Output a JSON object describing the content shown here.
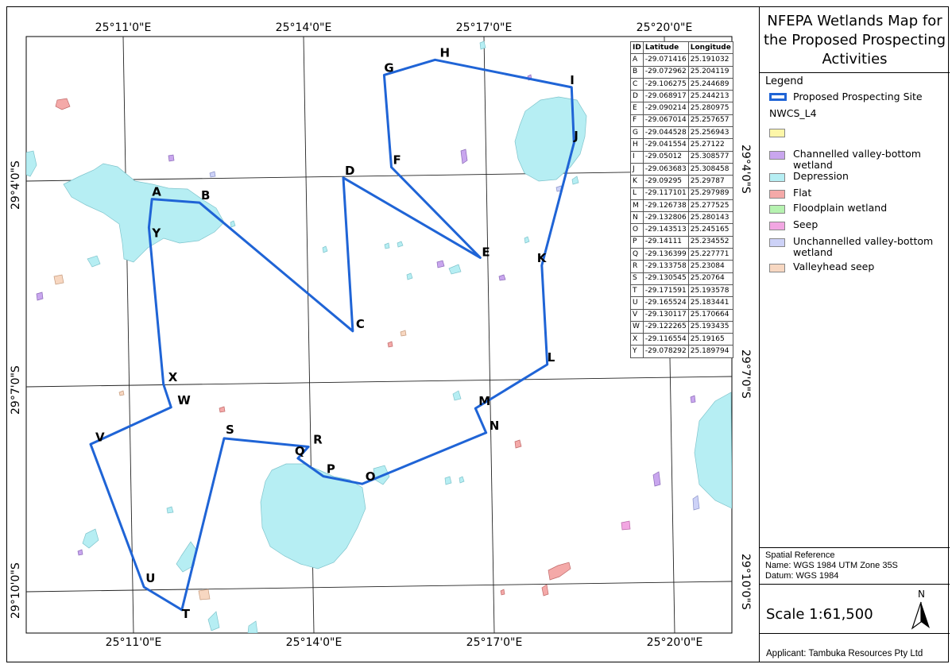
{
  "title": "NFEPA Wetlands Map for the Proposed Prospecting Activities",
  "legend": {
    "heading": "Legend",
    "site_label": "Proposed Prospecting Site",
    "layer_name": "NWCS_L4",
    "categories": [
      {
        "label": "",
        "color": "#fdf6a8"
      },
      {
        "label": "Channelled valley-bottom wetland",
        "color": "#c9a6ee"
      },
      {
        "label": "Depression",
        "color": "#b6eef3"
      },
      {
        "label": "Flat",
        "color": "#f4a9a8"
      },
      {
        "label": "Floodplain wetland",
        "color": "#b6f2b0"
      },
      {
        "label": "Seep",
        "color": "#f2a6e2"
      },
      {
        "label": "Unchannelled valley-bottom wetland",
        "color": "#cdd2f7"
      },
      {
        "label": "Valleyhead seep",
        "color": "#f7d7c1"
      }
    ]
  },
  "spatial_reference": {
    "heading": "Spatial Reference",
    "name": "Name: WGS 1984 UTM Zone 35S",
    "datum": "Datum: WGS 1984"
  },
  "scale": "Scale 1:61,500",
  "north_label": "N",
  "applicant": "Applicant: Tambuka Resources Pty Ltd",
  "graticule": {
    "top": [
      "25°11'0\"E",
      "25°14'0\"E",
      "25°17'0\"E",
      "25°20'0\"E"
    ],
    "bottom": [
      "25°11'0\"E",
      "25°14'0\"E",
      "25°17'0\"E",
      "25°20'0\"E"
    ],
    "left": [
      "29°4'0\"S",
      "29°7'0\"S",
      "29°10'0\"S"
    ],
    "right": [
      "29°4'0\"S",
      "29°7'0\"S",
      "29°10'0\"S"
    ]
  },
  "table": {
    "headers": [
      "ID",
      "Latitude",
      "Longitude"
    ],
    "rows": [
      [
        "A",
        "-29.071416",
        "25.191032"
      ],
      [
        "B",
        "-29.072962",
        "25.204119"
      ],
      [
        "C",
        "-29.106275",
        "25.244689"
      ],
      [
        "D",
        "-29.068917",
        "25.244213"
      ],
      [
        "E",
        "-29.090214",
        "25.280975"
      ],
      [
        "F",
        "-29.067014",
        "25.257657"
      ],
      [
        "G",
        "-29.044528",
        "25.256943"
      ],
      [
        "H",
        "-29.041554",
        "25.27122"
      ],
      [
        "I",
        "-29.05012",
        "25.308577"
      ],
      [
        "J",
        "-29.063683",
        "25.308458"
      ],
      [
        "K",
        "-29.09295",
        "25.29787"
      ],
      [
        "L",
        "-29.117101",
        "25.297989"
      ],
      [
        "M",
        "-29.126738",
        "25.277525"
      ],
      [
        "N",
        "-29.132806",
        "25.280143"
      ],
      [
        "O",
        "-29.143513",
        "25.245165"
      ],
      [
        "P",
        "-29.14111",
        "25.234552"
      ],
      [
        "Q",
        "-29.136399",
        "25.227771"
      ],
      [
        "R",
        "-29.133758",
        "25.23084"
      ],
      [
        "S",
        "-29.130545",
        "25.20764"
      ],
      [
        "T",
        "-29.171591",
        "25.193578"
      ],
      [
        "U",
        "-29.165524",
        "25.183441"
      ],
      [
        "V",
        "-29.130117",
        "25.170664"
      ],
      [
        "W",
        "-29.122265",
        "25.193435"
      ],
      [
        "X",
        "-29.116554",
        "25.19165"
      ],
      [
        "Y",
        "-29.078292",
        "25.189794"
      ]
    ]
  },
  "colors": {
    "site_outline": "#1f64d6",
    "depression": "#b6eef3",
    "depression_edge": "#7fc4cc"
  }
}
